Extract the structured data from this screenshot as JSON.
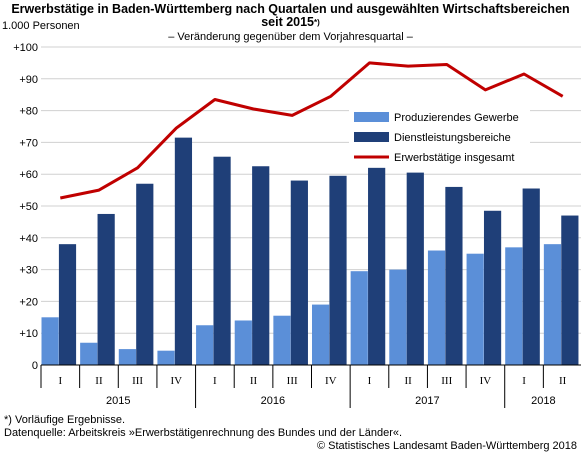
{
  "chart_data": {
    "type": "bar",
    "title": "Erwerbstätige in Baden-Württemberg nach Quartalen und ausgewählten Wirtschaftsbereichen seit 2015",
    "title_marker": "*)",
    "subtitle": "– Veränderung gegenüber dem Vorjahresquartal –",
    "ylabel": "1.000 Personen",
    "ylim": [
      0,
      100
    ],
    "yticks": [
      "0",
      "+10",
      "+20",
      "+30",
      "+40",
      "+50",
      "+60",
      "+70",
      "+80",
      "+90",
      "+100"
    ],
    "grid": true,
    "legend_position": "top-right",
    "categories": [
      "I",
      "II",
      "III",
      "IV",
      "I",
      "II",
      "III",
      "IV",
      "I",
      "II",
      "III",
      "IV",
      "I",
      "II"
    ],
    "years": [
      {
        "label": "2015",
        "quarters": 4
      },
      {
        "label": "2016",
        "quarters": 4
      },
      {
        "label": "2017",
        "quarters": 4
      },
      {
        "label": "2018",
        "quarters": 2
      }
    ],
    "series": [
      {
        "name": "Produzierendes Gewerbe",
        "type": "bar",
        "color": "#5b8fd8",
        "values": [
          15.0,
          7.0,
          5.0,
          4.5,
          12.5,
          14.0,
          15.5,
          19.0,
          29.5,
          30.0,
          36.0,
          35.0,
          37.0,
          38.0
        ]
      },
      {
        "name": "Dienstleistungsbereiche",
        "type": "bar",
        "color": "#1f3f78",
        "values": [
          38.0,
          47.5,
          57.0,
          71.5,
          65.5,
          62.5,
          58.0,
          59.5,
          62.0,
          60.5,
          56.0,
          48.5,
          55.5,
          47.0
        ]
      },
      {
        "name": "Erwerbstätige insgesamt",
        "type": "line",
        "color": "#c00000",
        "values": [
          52.5,
          55.0,
          62.0,
          74.5,
          83.5,
          80.5,
          78.5,
          84.5,
          95.0,
          94.0,
          94.5,
          86.5,
          91.5,
          84.5
        ]
      }
    ]
  },
  "footnote": "*) Vorläufige Ergebnisse.",
  "source": "Datenquelle: Arbeitskreis »Erwerbstätigenrechnung des Bundes und der Länder«.",
  "copyright": "© Statistisches Landesamt Baden-Württemberg 2018"
}
